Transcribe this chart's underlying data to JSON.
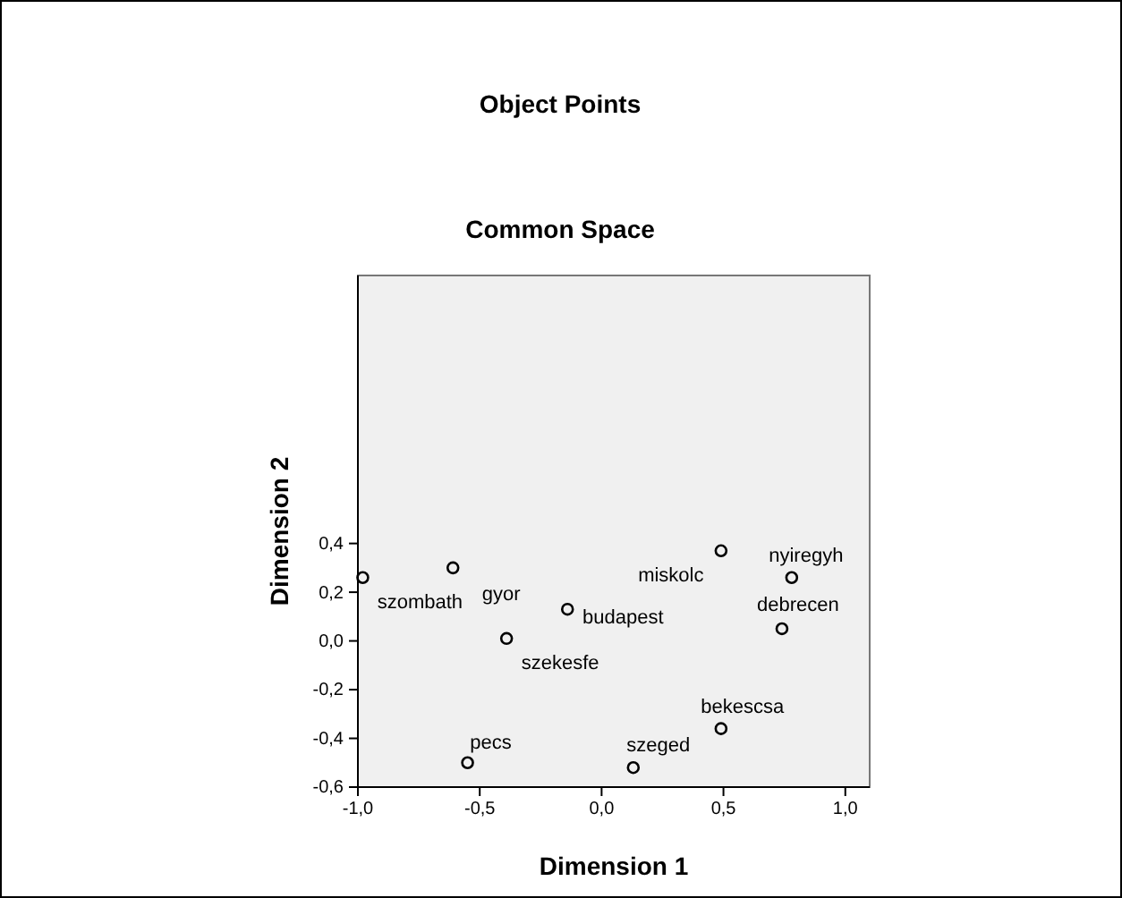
{
  "chart_data": {
    "type": "scatter",
    "title": "Object Points",
    "subtitle": "Common Space",
    "xlabel": "Dimension 1",
    "ylabel": "Dimension 2",
    "x": [
      -0.98,
      -0.61,
      -0.39,
      -0.14,
      0.49,
      0.78,
      0.74,
      0.49,
      0.13,
      -0.55
    ],
    "series": [
      {
        "color": "#000000",
        "values": [
          0.26,
          0.3,
          0.01,
          0.13,
          0.37,
          0.26,
          0.05,
          -0.36,
          -0.52,
          -0.5
        ]
      }
    ],
    "marker": "circle",
    "grid": false,
    "xlim": [
      -1.0,
      1.1
    ],
    "ylim": [
      -0.6,
      1.5
    ],
    "xticks": [
      {
        "value": -1.0,
        "label": "-1,0"
      },
      {
        "value": -0.5,
        "label": "-0,5"
      },
      {
        "value": 0,
        "label": "0,0"
      },
      {
        "value": 0.5,
        "label": "0,5"
      },
      {
        "value": 1.0,
        "label": "1,0"
      }
    ],
    "yticks": [
      {
        "value": -0.6,
        "label": "-0,6"
      },
      {
        "value": -0.4,
        "label": "-0,4"
      },
      {
        "value": -0.2,
        "label": "-0,2"
      },
      {
        "value": 0,
        "label": "0,0"
      },
      {
        "value": 0.2,
        "label": "0,2"
      },
      {
        "value": 0.4,
        "label": "0,4"
      }
    ],
    "annotations": [
      {
        "text": "szombath",
        "x": -0.98,
        "y": 0.26
      },
      {
        "text": "gyor",
        "x": -0.61,
        "y": 0.3
      },
      {
        "text": "szekesfe",
        "x": -0.39,
        "y": 0.01
      },
      {
        "text": "budapest",
        "x": -0.14,
        "y": 0.13
      },
      {
        "text": "miskolc",
        "x": 0.49,
        "y": 0.37
      },
      {
        "text": "nyiregyh",
        "x": 0.78,
        "y": 0.26
      },
      {
        "text": "debrecen",
        "x": 0.74,
        "y": 0.05
      },
      {
        "text": "bekescsa",
        "x": 0.49,
        "y": -0.36
      },
      {
        "text": "szeged",
        "x": 0.13,
        "y": -0.52
      },
      {
        "text": "pecs",
        "x": -0.55,
        "y": -0.5
      }
    ]
  }
}
